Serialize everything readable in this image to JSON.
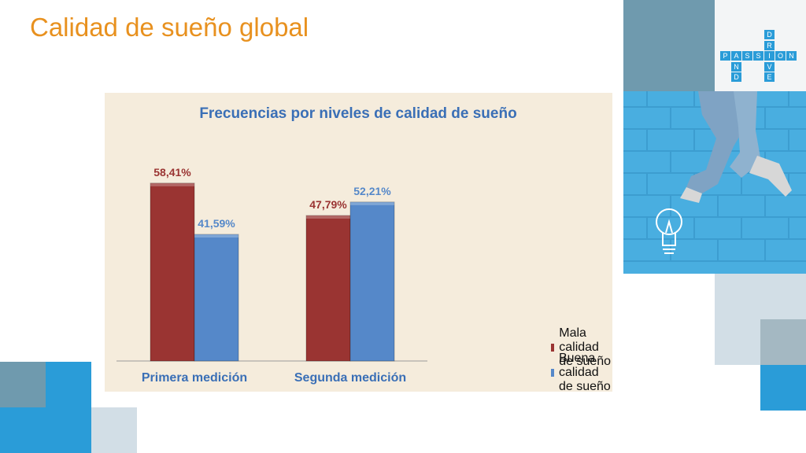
{
  "slide": {
    "title": "Calidad de sueño global"
  },
  "logo": {
    "letters_across": [
      "P",
      "A",
      "S",
      "S",
      "I",
      "O",
      "N"
    ],
    "letters_down_drive": [
      "D",
      "R",
      "I",
      "V",
      "E"
    ],
    "letters_down_and": [
      "A",
      "N",
      "D"
    ]
  },
  "photo": {
    "icon": "lightbulb-icon"
  },
  "colors": {
    "title": "#e8911f",
    "chart_title": "#3a6fb6",
    "panel_bg": "#f5ecdc",
    "mala": "#9a3432",
    "buena": "#5588c9"
  },
  "chart_data": {
    "type": "bar",
    "title": "Frecuencias por niveles de calidad de sueño",
    "categories": [
      "Primera medición",
      "Segunda medición"
    ],
    "series": [
      {
        "name": "Mala calidad de sueño",
        "values": [
          58.41,
          47.79
        ],
        "labels": [
          "58,41%",
          "47,79%"
        ],
        "color": "#9a3432"
      },
      {
        "name": "Buena calidad de sueño",
        "values": [
          41.59,
          52.21
        ],
        "labels": [
          "41,59%",
          "52,21%"
        ],
        "color": "#5588c9"
      }
    ],
    "ylim": [
      0,
      70
    ],
    "grid": false,
    "legend_position": "right"
  }
}
